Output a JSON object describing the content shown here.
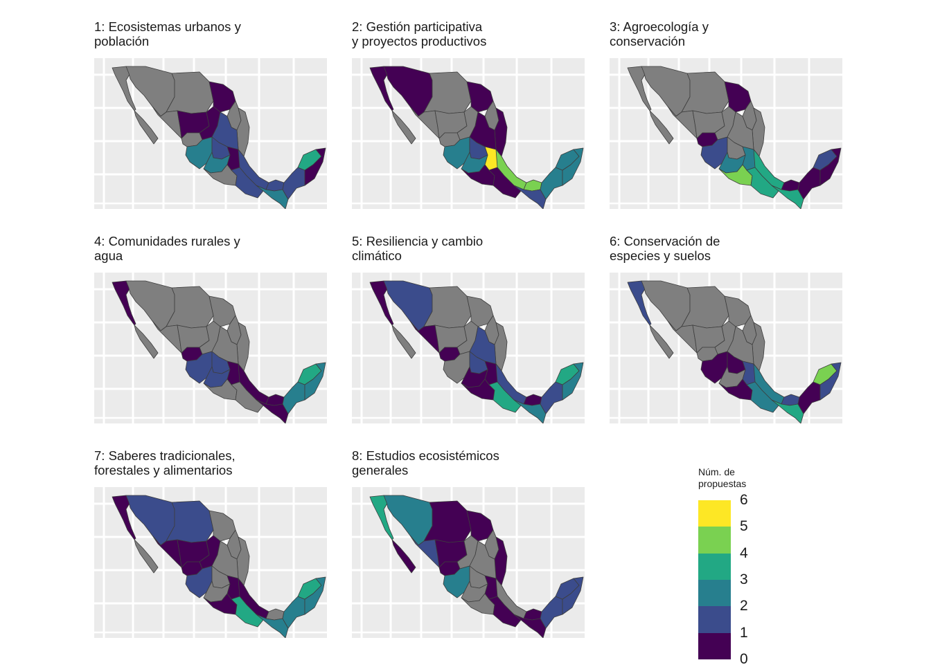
{
  "palette": [
    "#440154",
    "#3b4c8c",
    "#277f8e",
    "#22a884",
    "#7ad151",
    "#fde725"
  ],
  "na_color": "#7f7f7f",
  "panels": [
    {
      "title": "1: Ecosistemas urbanos y\npoblación",
      "regions": {
        "baja_norte": "na",
        "baja_sur": "na",
        "sonora": "na",
        "chihuahua": "na",
        "coahuila": 0,
        "nuevo_leon": "na",
        "tamaulipas": "na",
        "sinaloa": "na",
        "durango": 0,
        "zacatecas": 0,
        "san_luis": 1,
        "nayarit": "na",
        "jalisco": 2,
        "bajio": 1,
        "centro": 0,
        "veracruz": 1,
        "michoacan": 2,
        "guerrero": "na",
        "oaxaca": 1,
        "tabasco": 1,
        "chiapas": 2,
        "campeche": 1,
        "yucatan": 3,
        "quintana_roo": 0
      }
    },
    {
      "title": "2: Gestión participativa\ny proyectos productivos",
      "regions": {
        "baja_norte": 0,
        "baja_sur": "na",
        "sonora": 0,
        "chihuahua": "na",
        "coahuila": 0,
        "nuevo_leon": "na",
        "tamaulipas": 0,
        "sinaloa": "na",
        "durango": "na",
        "zacatecas": "na",
        "san_luis": 0,
        "nayarit": "na",
        "jalisco": 2,
        "bajio": 1,
        "centro": 5,
        "veracruz": 4,
        "michoacan": 2,
        "guerrero": 0,
        "oaxaca": 0,
        "tabasco": 4,
        "chiapas": 1,
        "campeche": 2,
        "yucatan": 2,
        "quintana_roo": 2
      }
    },
    {
      "title": "3: Agroecología y\nconservación",
      "regions": {
        "baja_norte": "na",
        "baja_sur": "na",
        "sonora": "na",
        "chihuahua": "na",
        "coahuila": 0,
        "nuevo_leon": "na",
        "tamaulipas": "na",
        "sinaloa": "na",
        "durango": "na",
        "zacatecas": "na",
        "san_luis": "na",
        "nayarit": 0,
        "jalisco": 1,
        "bajio": "na",
        "centro": 2,
        "veracruz": 3,
        "michoacan": 2,
        "guerrero": 4,
        "oaxaca": 3,
        "tabasco": 0,
        "chiapas": 3,
        "campeche": 0,
        "yucatan": 1,
        "quintana_roo": 0
      }
    },
    {
      "title": "4: Comunidades rurales y\nagua",
      "regions": {
        "baja_norte": 0,
        "baja_sur": "na",
        "sonora": "na",
        "chihuahua": "na",
        "coahuila": "na",
        "nuevo_leon": "na",
        "tamaulipas": "na",
        "sinaloa": "na",
        "durango": "na",
        "zacatecas": "na",
        "san_luis": "na",
        "nayarit": 0,
        "jalisco": 1,
        "bajio": 1,
        "centro": 0,
        "veracruz": 0,
        "michoacan": 1,
        "guerrero": "na",
        "oaxaca": "na",
        "tabasco": 0,
        "chiapas": 0,
        "campeche": 2,
        "yucatan": 3,
        "quintana_roo": 2
      }
    },
    {
      "title": "5: Resiliencia y cambio\nclimático",
      "regions": {
        "baja_norte": 0,
        "baja_sur": "na",
        "sonora": 1,
        "chihuahua": "na",
        "coahuila": "na",
        "nuevo_leon": "na",
        "tamaulipas": "na",
        "sinaloa": 0,
        "durango": "na",
        "zacatecas": "na",
        "san_luis": 1,
        "nayarit": 0,
        "jalisco": "na",
        "bajio": 1,
        "centro": 0,
        "veracruz": 1,
        "michoacan": 0,
        "guerrero": 0,
        "oaxaca": 3,
        "tabasco": 0,
        "chiapas": 2,
        "campeche": 1,
        "yucatan": 3,
        "quintana_roo": 2
      }
    },
    {
      "title": "6: Conservación de\nespecies y suelos",
      "regions": {
        "baja_norte": 1,
        "baja_sur": "na",
        "sonora": "na",
        "chihuahua": "na",
        "coahuila": "na",
        "nuevo_leon": "na",
        "tamaulipas": "na",
        "sinaloa": "na",
        "durango": "na",
        "zacatecas": "na",
        "san_luis": "na",
        "nayarit": "na",
        "jalisco": 0,
        "bajio": 0,
        "centro": 1,
        "veracruz": 2,
        "michoacan": "na",
        "guerrero": 0,
        "oaxaca": 2,
        "tabasco": 1,
        "chiapas": 3,
        "campeche": 0,
        "yucatan": 4,
        "quintana_roo": 1
      }
    },
    {
      "title": "7: Saberes tradicionales,\nforestales y alimentarios",
      "regions": {
        "baja_norte": 0,
        "baja_sur": "na",
        "sonora": 1,
        "chihuahua": 1,
        "coahuila": "na",
        "nuevo_leon": "na",
        "tamaulipas": "na",
        "sinaloa": 0,
        "durango": 0,
        "zacatecas": 0,
        "san_luis": "na",
        "nayarit": 0,
        "jalisco": 1,
        "bajio": "na",
        "centro": 0,
        "veracruz": 0,
        "michoacan": "na",
        "guerrero": 0,
        "oaxaca": 3,
        "tabasco": "na",
        "chiapas": 2,
        "campeche": 2,
        "yucatan": 3,
        "quintana_roo": 2
      }
    },
    {
      "title": "8: Estudios ecosistémicos\ngenerales",
      "regions": {
        "baja_norte": 3,
        "baja_sur": 0,
        "sonora": 2,
        "chihuahua": 0,
        "coahuila": 0,
        "nuevo_leon": "na",
        "tamaulipas": 0,
        "sinaloa": 1,
        "durango": 0,
        "zacatecas": "na",
        "san_luis": "na",
        "nayarit": 0,
        "jalisco": 2,
        "bajio": "na",
        "centro": 0,
        "veracruz": "na",
        "michoacan": "na",
        "guerrero": "na",
        "oaxaca": 0,
        "tabasco": 0,
        "chiapas": 0,
        "campeche": 1,
        "yucatan": 1,
        "quintana_roo": 1
      }
    }
  ],
  "legend": {
    "title": "Núm. de\npropuestas",
    "labels": [
      "6",
      "5",
      "4",
      "3",
      "2",
      "1",
      "0"
    ]
  }
}
